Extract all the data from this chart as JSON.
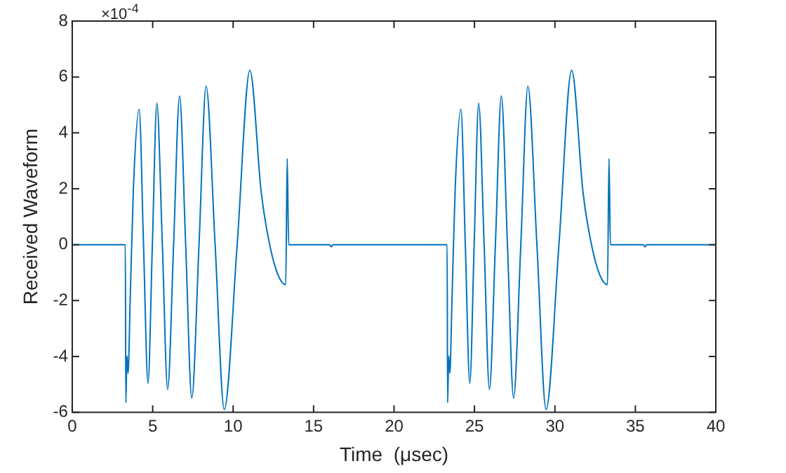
{
  "chart_data": {
    "type": "line",
    "xlabel": "Time  (μsec)",
    "ylabel": "Received Waveform",
    "annotations": [
      "×10$^{-4}$"
    ],
    "xlim": [
      0,
      40
    ],
    "xticks": [
      0,
      5,
      10,
      15,
      20,
      25,
      30,
      35,
      40
    ],
    "ylim": [
      -6,
      8
    ],
    "yticks": [
      -6,
      -4,
      -2,
      0,
      2,
      4,
      6,
      8
    ],
    "grid": false,
    "legend": false,
    "marker": "none",
    "line_style": "solid",
    "series": [
      {
        "color": "#0072bd",
        "x": [
          0,
          3.3,
          3.33,
          3.4,
          3.47,
          3.6,
          3.8,
          4.16,
          4.43,
          4.71,
          4.98,
          5.26,
          5.6,
          5.93,
          6.3,
          6.67,
          7.05,
          7.43,
          7.88,
          8.32,
          8.88,
          9.45,
          10.25,
          11.04,
          11.74,
          12.05,
          12.66,
          13.27,
          13.36,
          13.45,
          16,
          16.1,
          16.2,
          22.6,
          23.3,
          23.33,
          23.4,
          23.47,
          23.6,
          23.8,
          24.16,
          24.43,
          24.71,
          24.98,
          25.26,
          25.6,
          25.93,
          26.3,
          26.67,
          27.05,
          27.43,
          27.88,
          28.32,
          28.88,
          29.45,
          30.25,
          31.04,
          31.74,
          32.05,
          32.66,
          33.27,
          33.36,
          33.45,
          35.5,
          35.6,
          35.7,
          40
        ],
        "values": [
          0,
          0,
          -5.65,
          -3.98,
          -4.6,
          -2,
          2,
          4.84,
          0,
          -4.96,
          0,
          5.06,
          0,
          -5.18,
          0,
          5.32,
          0,
          -5.49,
          0,
          5.67,
          0,
          -5.9,
          0,
          6.24,
          1.9,
          0.67,
          -0.88,
          -1.43,
          3.08,
          0,
          0,
          -0.08,
          0,
          0,
          0,
          -5.65,
          -3.98,
          -4.6,
          -2,
          2,
          4.84,
          0,
          -4.96,
          0,
          5.06,
          0,
          -5.18,
          0,
          5.32,
          0,
          -5.49,
          0,
          5.67,
          0,
          -5.9,
          0,
          6.24,
          1.9,
          0.67,
          -0.88,
          -1.43,
          3.08,
          0,
          0,
          -0.08,
          0,
          0
        ]
      }
    ]
  }
}
